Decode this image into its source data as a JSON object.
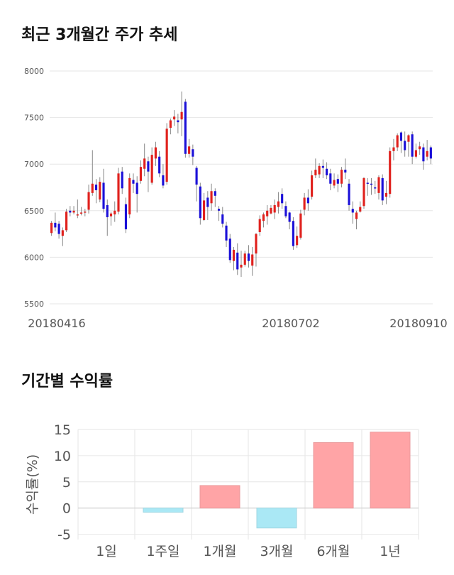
{
  "titles": {
    "price_trend": "최근 3개월간 주가 추세",
    "period_returns": "기간별 수익률"
  },
  "chart_data": [
    {
      "type": "candlestick",
      "title": "최근 3개월간 주가 추세",
      "ylim": [
        5500,
        8000
      ],
      "yticks": [
        5500,
        6000,
        6500,
        7000,
        7500,
        8000
      ],
      "xtick_labels": [
        "20180416",
        "20180702",
        "20180910"
      ],
      "grid": true,
      "colors": {
        "up": "#e0211d",
        "down": "#1b10d8",
        "wick": "#888888",
        "grid": "#e6e6e6"
      },
      "candles": [
        [
          6260,
          6370,
          6390,
          6230
        ],
        [
          6370,
          6320,
          6480,
          6280
        ],
        [
          6360,
          6250,
          6390,
          6200
        ],
        [
          6230,
          6290,
          6320,
          6120
        ],
        [
          6290,
          6490,
          6520,
          6270
        ],
        [
          6500,
          6480,
          6550,
          6440
        ],
        [
          6480,
          6500,
          6550,
          6460
        ],
        [
          6460,
          6460,
          6620,
          6420
        ],
        [
          6470,
          6480,
          6540,
          6450
        ],
        [
          6480,
          6490,
          6520,
          6440
        ],
        [
          6510,
          6700,
          6780,
          6470
        ],
        [
          6690,
          6790,
          7150,
          6660
        ],
        [
          6780,
          6720,
          6840,
          6580
        ],
        [
          6620,
          6810,
          6860,
          6590
        ],
        [
          6800,
          6520,
          6950,
          6480
        ],
        [
          6560,
          6430,
          6620,
          6230
        ],
        [
          6440,
          6470,
          6490,
          6340
        ],
        [
          6460,
          6500,
          6600,
          6380
        ],
        [
          6490,
          6900,
          6960,
          6460
        ],
        [
          6920,
          6740,
          6970,
          6680
        ],
        [
          6570,
          6300,
          6640,
          6260
        ],
        [
          6460,
          6850,
          6900,
          6420
        ],
        [
          6830,
          6790,
          6900,
          6690
        ],
        [
          6800,
          6680,
          6870,
          6480
        ],
        [
          6820,
          6970,
          7040,
          6790
        ],
        [
          6950,
          7060,
          7220,
          6870
        ],
        [
          7030,
          6920,
          7080,
          6700
        ],
        [
          6800,
          7100,
          7180,
          6780
        ],
        [
          7060,
          7180,
          7240,
          6980
        ],
        [
          7080,
          6900,
          7140,
          6860
        ],
        [
          6880,
          6770,
          7000,
          6740
        ],
        [
          6810,
          7380,
          7440,
          6780
        ],
        [
          7390,
          7470,
          7490,
          7320
        ],
        [
          7480,
          7510,
          7580,
          7410
        ],
        [
          7470,
          7450,
          7540,
          7330
        ],
        [
          7480,
          7560,
          7780,
          7300
        ],
        [
          7670,
          7110,
          7700,
          7070
        ],
        [
          7110,
          7190,
          7270,
          7070
        ],
        [
          7160,
          7080,
          7210,
          6990
        ],
        [
          6960,
          6780,
          6980,
          6600
        ],
        [
          6760,
          6420,
          6800,
          6350
        ],
        [
          6400,
          6610,
          6690,
          6390
        ],
        [
          6640,
          6540,
          6710,
          6400
        ],
        [
          6580,
          6710,
          6790,
          6500
        ],
        [
          6710,
          6660,
          6740,
          6540
        ],
        [
          6520,
          6500,
          6550,
          6390
        ],
        [
          6460,
          6360,
          6540,
          6320
        ],
        [
          6340,
          6180,
          6380,
          6110
        ],
        [
          6200,
          5970,
          6250,
          5940
        ],
        [
          5960,
          6080,
          6110,
          5860
        ],
        [
          6050,
          5870,
          6150,
          5810
        ],
        [
          5890,
          5920,
          6070,
          5790
        ],
        [
          5920,
          6040,
          6070,
          5900
        ],
        [
          6040,
          5960,
          6130,
          5890
        ],
        [
          5910,
          6030,
          6110,
          5800
        ],
        [
          6040,
          6250,
          6260,
          5900
        ],
        [
          6270,
          6410,
          6450,
          6230
        ],
        [
          6390,
          6460,
          6480,
          6320
        ],
        [
          6440,
          6500,
          6560,
          6350
        ],
        [
          6470,
          6530,
          6560,
          6460
        ],
        [
          6480,
          6560,
          6620,
          6410
        ],
        [
          6540,
          6600,
          6700,
          6470
        ],
        [
          6680,
          6580,
          6740,
          6520
        ],
        [
          6550,
          6440,
          6600,
          6420
        ],
        [
          6480,
          6380,
          6490,
          6300
        ],
        [
          6390,
          6120,
          6430,
          6080
        ],
        [
          6130,
          6230,
          6330,
          6100
        ],
        [
          6210,
          6470,
          6510,
          6190
        ],
        [
          6510,
          6640,
          6690,
          6450
        ],
        [
          6640,
          6580,
          6730,
          6500
        ],
        [
          6650,
          6880,
          6930,
          6620
        ],
        [
          6880,
          6940,
          7060,
          6850
        ],
        [
          6890,
          6980,
          7010,
          6850
        ],
        [
          6980,
          6960,
          7050,
          6850
        ],
        [
          6950,
          6880,
          7020,
          6840
        ],
        [
          6900,
          6790,
          6950,
          6720
        ],
        [
          6770,
          6830,
          6900,
          6740
        ],
        [
          6840,
          6790,
          6890,
          6700
        ],
        [
          6790,
          6940,
          6970,
          6750
        ],
        [
          6940,
          6910,
          7060,
          6840
        ],
        [
          6790,
          6560,
          6840,
          6500
        ],
        [
          6520,
          6480,
          6600,
          6360
        ],
        [
          6410,
          6480,
          6500,
          6300
        ],
        [
          6490,
          6540,
          6600,
          6480
        ],
        [
          6550,
          6850,
          6860,
          6520
        ],
        [
          6800,
          6790,
          6850,
          6660
        ],
        [
          6790,
          6780,
          6850,
          6670
        ],
        [
          6750,
          6740,
          6820,
          6680
        ],
        [
          6690,
          6860,
          6880,
          6620
        ],
        [
          6850,
          6610,
          6890,
          6560
        ],
        [
          6650,
          6690,
          6820,
          6570
        ],
        [
          6680,
          7140,
          7180,
          6640
        ],
        [
          7140,
          7180,
          7270,
          7040
        ],
        [
          7180,
          7310,
          7330,
          7140
        ],
        [
          7340,
          7250,
          7350,
          7120
        ],
        [
          7250,
          7150,
          7350,
          7080
        ],
        [
          7240,
          7310,
          7320,
          7080
        ],
        [
          7320,
          7080,
          7350,
          7000
        ],
        [
          7080,
          7150,
          7220,
          7060
        ],
        [
          7160,
          7190,
          7240,
          7100
        ],
        [
          7180,
          7030,
          7220,
          6940
        ],
        [
          7080,
          7140,
          7260,
          7040
        ],
        [
          7180,
          7060,
          7200,
          7000
        ]
      ]
    },
    {
      "type": "bar",
      "title": "기간별 수익률",
      "ylabel": "수익률(%)",
      "ylim": [
        -6,
        15
      ],
      "yticks": [
        -5,
        0,
        5,
        10,
        15
      ],
      "categories": [
        "1일",
        "1주일",
        "1개월",
        "3개월",
        "6개월",
        "1년"
      ],
      "values": [
        0,
        -0.8,
        4.3,
        -3.8,
        12.5,
        14.5
      ],
      "grid": true,
      "colors": {
        "positive": "#ffa4a6",
        "negative": "#aae8f5"
      }
    }
  ]
}
